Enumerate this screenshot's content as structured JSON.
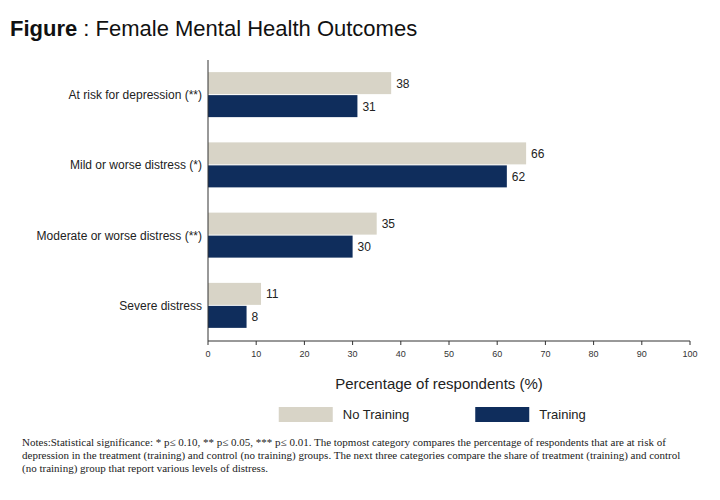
{
  "chart_data": {
    "type": "bar",
    "orientation": "horizontal",
    "title": "Figure : Female Mental Health Outcomes",
    "categories": [
      "At risk for depression (**)",
      "Mild or worse distress (*)",
      "Moderate or worse distress (**)",
      "Severe distress"
    ],
    "series": [
      {
        "name": "No Training",
        "color": "#d8d4c7",
        "values": [
          38,
          66,
          35,
          11
        ]
      },
      {
        "name": "Training",
        "color": "#0f2d5c",
        "values": [
          31,
          62,
          30,
          8
        ]
      }
    ],
    "xlabel": "Percentage of respondents (%)",
    "xlim": [
      0,
      100
    ],
    "xticks": [
      0,
      10,
      20,
      30,
      40,
      50,
      60,
      70,
      80,
      90,
      100
    ],
    "grid": false,
    "data_labels": true,
    "legend": "bottom",
    "notes": "Notes:Statistical significance: * p≤ 0.10, ** p≤ 0.05, *** p≤ 0.01. The topmost category compares the percentage of respondents that are at risk of depression in the treatment (training) and control (no training) groups. The next three categories compare the share of treatment (training) and control (no training) group that report various levels of distress."
  }
}
